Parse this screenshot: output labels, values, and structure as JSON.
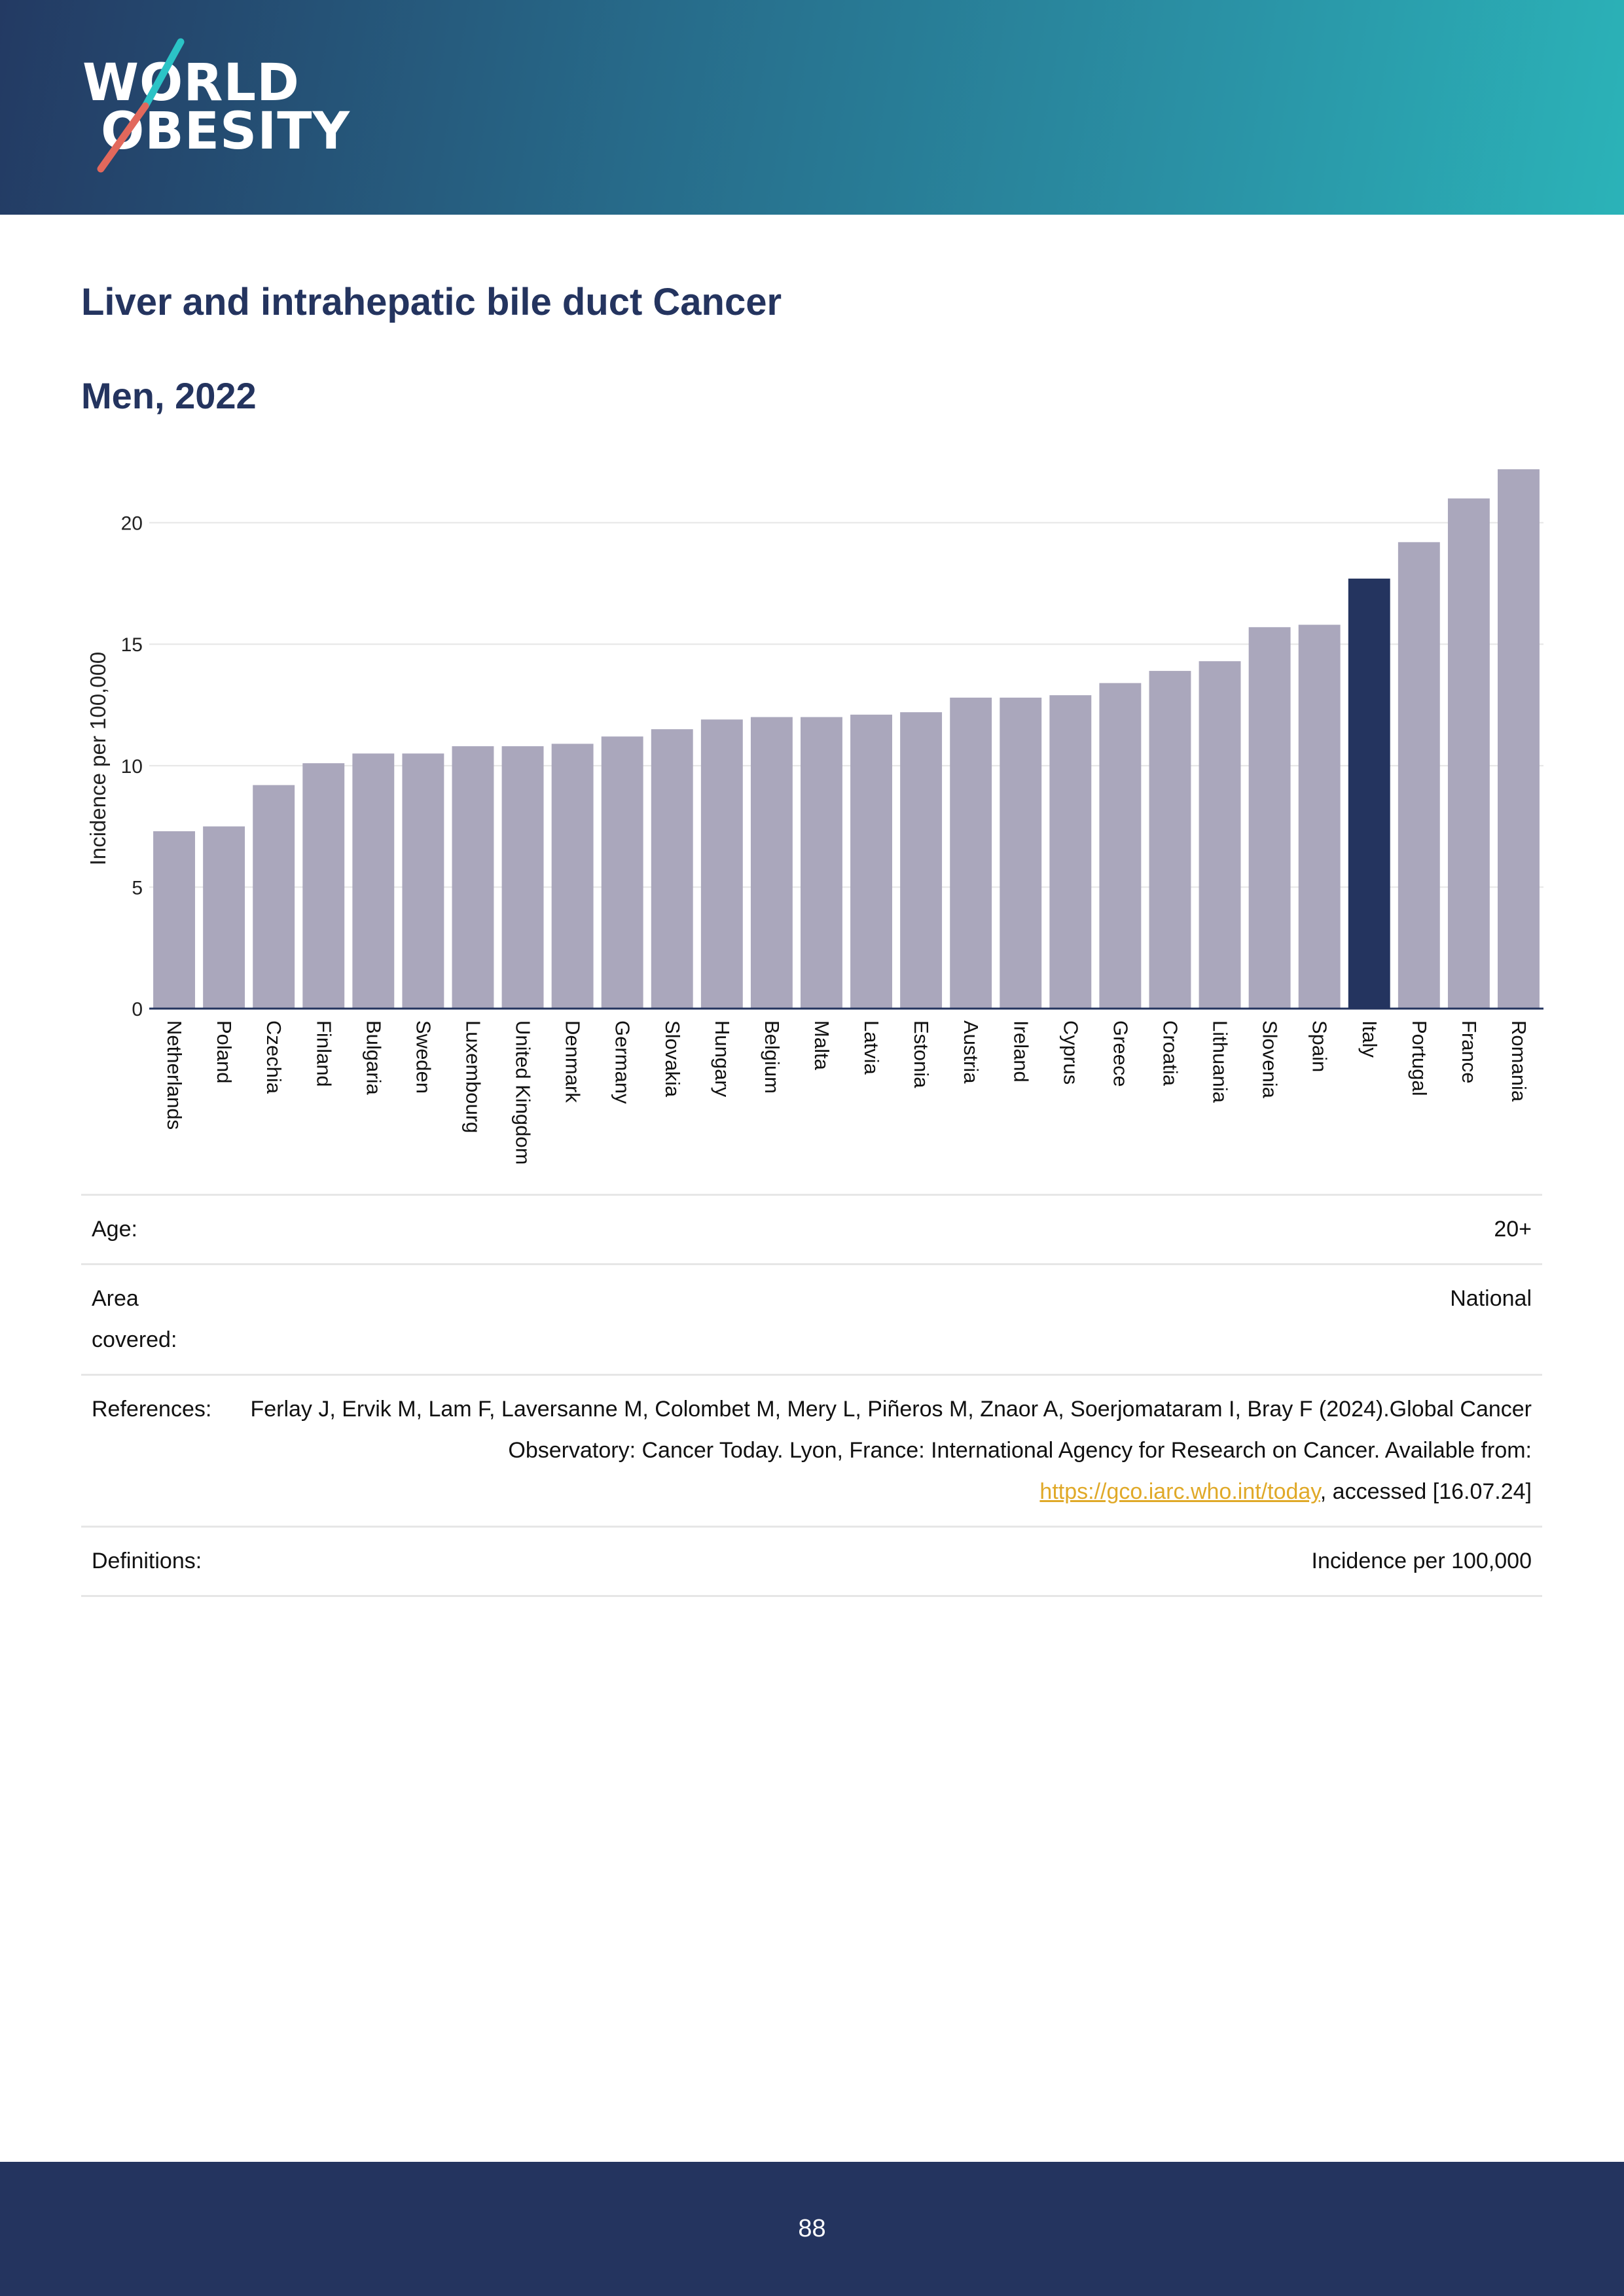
{
  "header": {
    "logo_line1": "WORLD",
    "logo_line2": "OBESITY",
    "background_start": "#233a63",
    "background_end": "#2bb3b8"
  },
  "title": "Liver and intrahepatic bile duct Cancer",
  "subtitle": "Men, 2022",
  "chart_data": {
    "type": "bar",
    "ylabel": "Incidence per 100,000",
    "xlabel": "",
    "ylim": [
      0,
      22.2
    ],
    "yticks": [
      0,
      5,
      10,
      15,
      20
    ],
    "grid": true,
    "categories": [
      "Netherlands",
      "Poland",
      "Czechia",
      "Finland",
      "Bulgaria",
      "Sweden",
      "Luxembourg",
      "United Kingdom",
      "Denmark",
      "Germany",
      "Slovakia",
      "Hungary",
      "Belgium",
      "Malta",
      "Latvia",
      "Estonia",
      "Austria",
      "Ireland",
      "Cyprus",
      "Greece",
      "Croatia",
      "Lithuania",
      "Slovenia",
      "Spain",
      "Italy",
      "Portugal",
      "France",
      "Romania"
    ],
    "values": [
      7.3,
      7.5,
      9.2,
      10.1,
      10.5,
      10.5,
      10.8,
      10.8,
      10.9,
      11.2,
      11.5,
      11.9,
      12.0,
      12.0,
      12.1,
      12.2,
      12.8,
      12.8,
      12.9,
      13.4,
      13.9,
      14.3,
      15.7,
      15.8,
      17.7,
      19.2,
      21.0,
      22.2
    ],
    "highlight": "Italy",
    "bar_color": "#aaa7bc",
    "highlight_color": "#24345f"
  },
  "info": {
    "age_label": "Age:",
    "age_value": "20+",
    "area_label": "Area covered:",
    "area_value": "National",
    "references_label": "References:",
    "references_text": "Ferlay J, Ervik M, Lam F, Laversanne M, Colombet M, Mery L, Piñeros M, Znaor A, Soerjomataram I, Bray F (2024).Global Cancer Observatory: Cancer Today. Lyon, France: International Agency for Research on Cancer. Available from:",
    "references_link": "https://gco.iarc.who.int/today",
    "references_suffix": ", accessed [16.07.24]",
    "definitions_label": "Definitions:",
    "definitions_value": "Incidence per 100,000"
  },
  "footer": {
    "page_number": "88"
  }
}
